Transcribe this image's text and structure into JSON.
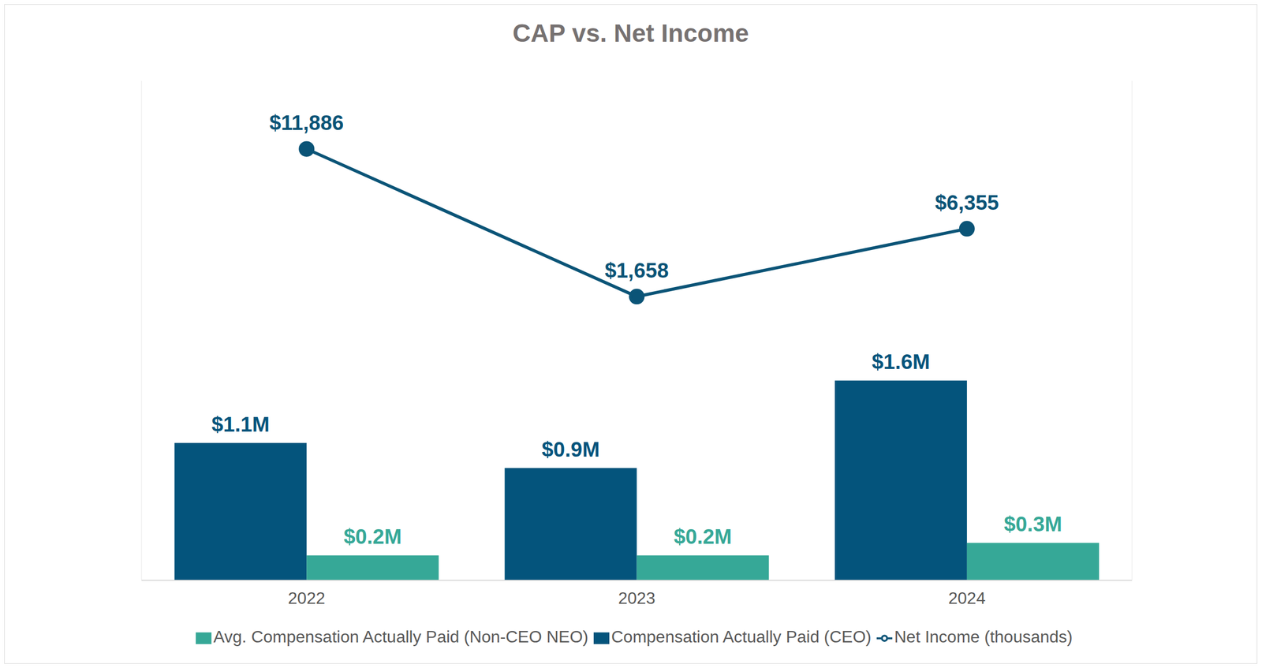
{
  "chart_data": {
    "type": "bar",
    "title": "CAP vs. Net Income",
    "categories": [
      "2022",
      "2023",
      "2024"
    ],
    "series": [
      {
        "name": "Compensation Actually Paid (CEO)",
        "type": "bar",
        "color": "#04547c",
        "values": [
          1.1,
          0.9,
          1.6
        ],
        "value_labels": [
          "$1.1M",
          "$0.9M",
          "$1.6M"
        ]
      },
      {
        "name": "Avg. Compensation Actually Paid (Non-CEO NEO)",
        "type": "bar",
        "color": "#36a897",
        "values": [
          0.2,
          0.2,
          0.3
        ],
        "value_labels": [
          "$0.2M",
          "$0.2M",
          "$0.3M"
        ]
      },
      {
        "name": "Net Income (thousands)",
        "type": "line",
        "axis": "y2",
        "color": "#0b5477",
        "marker": "circle",
        "values": [
          11886,
          1658,
          6355
        ],
        "value_labels": [
          "$11,886",
          "$1,658",
          "$6,355"
        ]
      }
    ],
    "ylim": [
      0,
      4
    ],
    "yticks": [],
    "y2lim": [
      -18000,
      16600
    ],
    "y2ticks": [],
    "data_labels": true,
    "tick_labels": "x",
    "legend": "bottom",
    "grid": false
  }
}
